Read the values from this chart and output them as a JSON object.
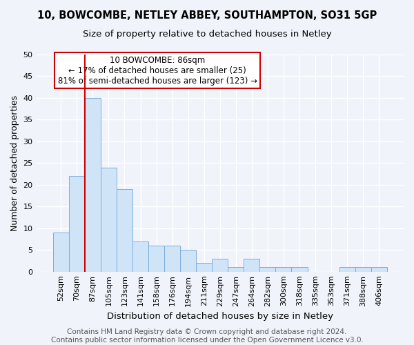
{
  "title1": "10, BOWCOMBE, NETLEY ABBEY, SOUTHAMPTON, SO31 5GP",
  "title2": "Size of property relative to detached houses in Netley",
  "xlabel": "Distribution of detached houses by size in Netley",
  "ylabel": "Number of detached properties",
  "categories": [
    "52sqm",
    "70sqm",
    "87sqm",
    "105sqm",
    "123sqm",
    "141sqm",
    "158sqm",
    "176sqm",
    "194sqm",
    "211sqm",
    "229sqm",
    "247sqm",
    "264sqm",
    "282sqm",
    "300sqm",
    "318sqm",
    "335sqm",
    "353sqm",
    "371sqm",
    "388sqm",
    "406sqm"
  ],
  "values": [
    9,
    22,
    40,
    24,
    19,
    7,
    6,
    6,
    5,
    2,
    3,
    1,
    3,
    1,
    1,
    1,
    0,
    0,
    1,
    1,
    1
  ],
  "bar_color": "#d0e4f7",
  "bar_edge_color": "#7aaddb",
  "highlight_index": 2,
  "highlight_line_color": "#cc0000",
  "annotation_text": "10 BOWCOMBE: 86sqm\n← 17% of detached houses are smaller (25)\n81% of semi-detached houses are larger (123) →",
  "annotation_box_edge_color": "#cc0000",
  "ylim": [
    0,
    50
  ],
  "yticks": [
    0,
    5,
    10,
    15,
    20,
    25,
    30,
    35,
    40,
    45,
    50
  ],
  "footer1": "Contains HM Land Registry data © Crown copyright and database right 2024.",
  "footer2": "Contains public sector information licensed under the Open Government Licence v3.0.",
  "bg_color": "#f0f4fa",
  "plot_bg_color": "#f0f4fa",
  "grid_color": "#ffffff",
  "title1_fontsize": 10.5,
  "title2_fontsize": 9.5,
  "xlabel_fontsize": 9.5,
  "ylabel_fontsize": 9,
  "tick_fontsize": 8,
  "annotation_fontsize": 8.5,
  "footer_fontsize": 7.5
}
